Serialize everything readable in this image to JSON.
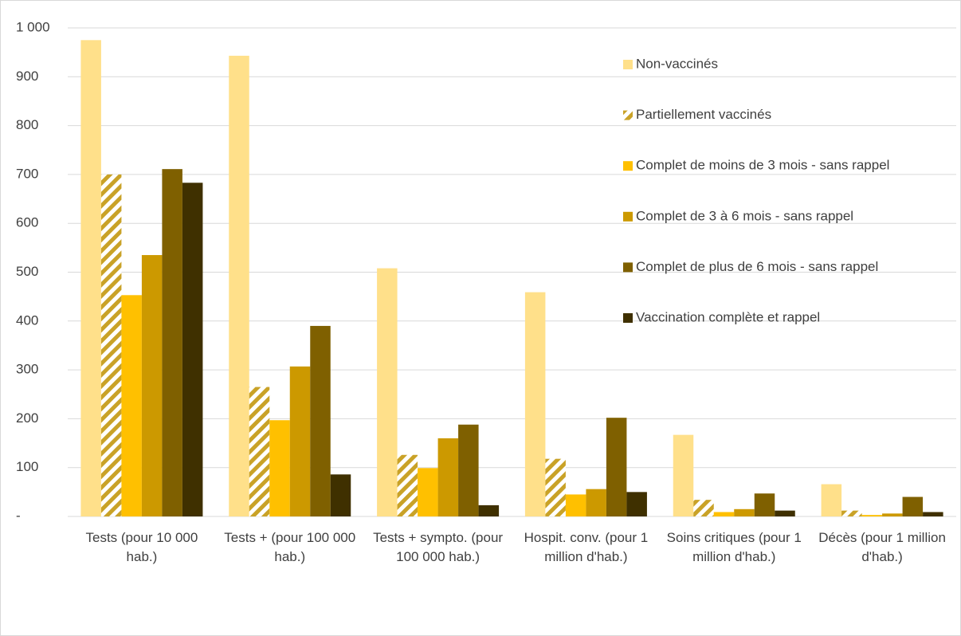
{
  "chart_data": {
    "type": "bar",
    "categories": [
      "Tests (pour 10 000 hab.)",
      "Tests + (pour 100 000 hab.)",
      "Tests + sympto. (pour 100 000 hab.)",
      "Hospit. conv. (pour 1 million d'hab.)",
      "Soins critiques (pour 1 million d'hab.)",
      "Décès (pour 1 million d'hab.)"
    ],
    "series": [
      {
        "name": "Non-vaccinés",
        "color": "#ffe08a",
        "values": [
          975,
          943,
          508,
          459,
          167,
          66
        ]
      },
      {
        "name": "Partiellement vaccinés",
        "color": "#c9a227",
        "pattern": "hatch",
        "values": [
          700,
          265,
          126,
          118,
          34,
          12
        ]
      },
      {
        "name": "Complet de moins de 3 mois - sans rappel",
        "color": "#ffc000",
        "values": [
          453,
          197,
          99,
          45,
          9,
          3
        ]
      },
      {
        "name": "Complet de 3 à 6 mois - sans rappel",
        "color": "#cc9900",
        "values": [
          535,
          307,
          160,
          56,
          15,
          6
        ]
      },
      {
        "name": "Complet de plus de 6 mois - sans rappel",
        "color": "#7f6000",
        "values": [
          711,
          390,
          188,
          202,
          47,
          40
        ]
      },
      {
        "name": "Vaccination complète et rappel",
        "color": "#3f3000",
        "values": [
          683,
          86,
          23,
          50,
          12,
          9
        ]
      }
    ],
    "ylim": [
      0,
      1000
    ],
    "yticks": [
      {
        "value": 0,
        "label": "-"
      },
      100,
      200,
      300,
      400,
      500,
      600,
      700,
      800,
      900,
      {
        "value": 1000,
        "label": "1 000"
      }
    ],
    "grid": true,
    "legend": "right"
  }
}
